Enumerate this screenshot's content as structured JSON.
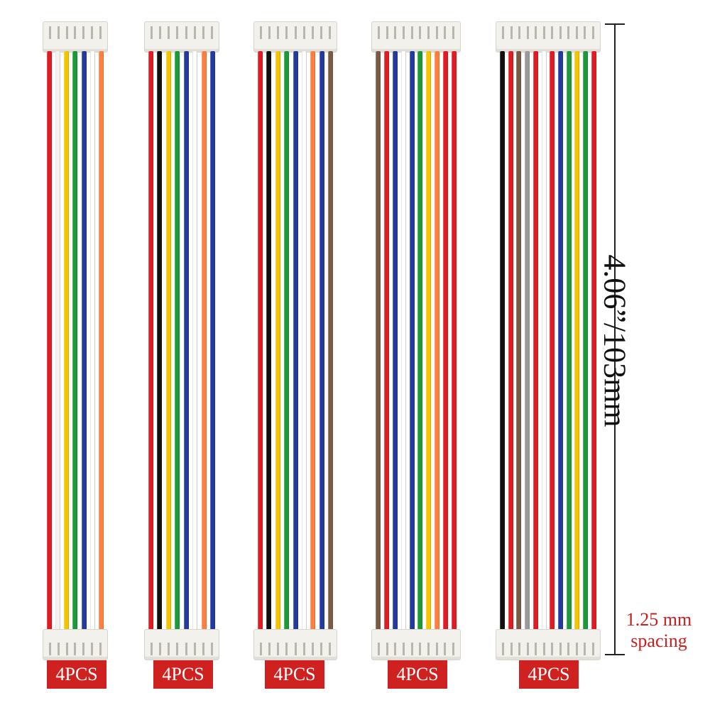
{
  "cables": [
    {
      "wires": [
        "#e11b22",
        "#f2f2f2",
        "#f5c400",
        "#1c9a3a",
        "#233a9e",
        "#ffffff",
        "#ff7f3f"
      ],
      "qty_label": "4PCS"
    },
    {
      "wires": [
        "#e11b22",
        "#111111",
        "#f5c400",
        "#1c9a3a",
        "#233a9e",
        "#ffffff",
        "#ff7f3f",
        "#233a9e"
      ],
      "qty_label": "4PCS"
    },
    {
      "wires": [
        "#e11b22",
        "#111111",
        "#f5c400",
        "#1c9a3a",
        "#233a9e",
        "#ffffff",
        "#ff7f3f",
        "#233a9e",
        "#7a5a45"
      ],
      "qty_label": "4PCS"
    },
    {
      "wires": [
        "#7a5a45",
        "#e11b22",
        "#233a9e",
        "#ffffff",
        "#233a9e",
        "#1c9a3a",
        "#f5c400",
        "#ff7f3f",
        "#e11b22",
        "#e11b22"
      ],
      "qty_label": "4PCS"
    },
    {
      "wires": [
        "#111111",
        "#e11b22",
        "#7a5a45",
        "#9a9a9a",
        "#e11b22",
        "#ffffff",
        "#e11b22",
        "#233a9e",
        "#1c9a3a",
        "#f5c400",
        "#1c9a3a",
        "#e11b22"
      ],
      "qty_label": "4PCS"
    }
  ],
  "dimension": {
    "length_label": "4.06”/103mm"
  },
  "spacing_label": {
    "line1": "1.25 mm",
    "line2": "spacing"
  },
  "colors": {
    "badge": "#d02121",
    "spacing_text": "#c81e1e"
  }
}
